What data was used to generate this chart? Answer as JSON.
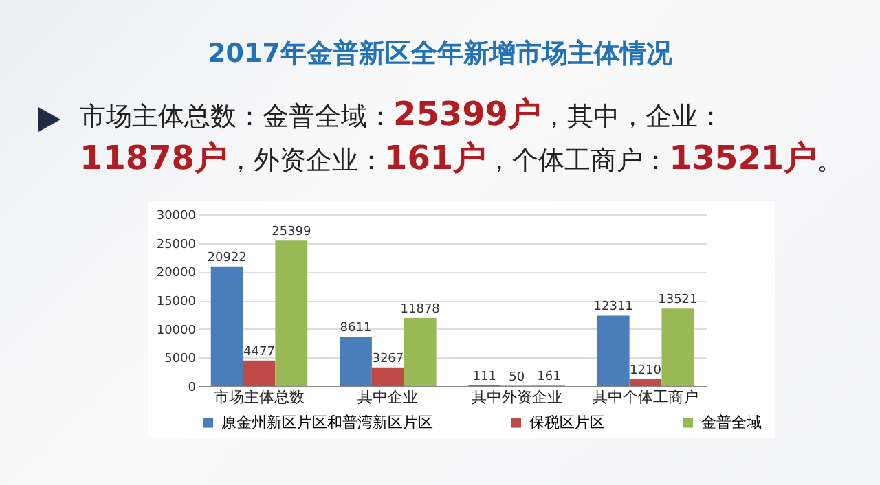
{
  "chart_data": {
    "type": "bar",
    "title": "2017年金普新区全年新增市场主体情况",
    "annotations": [
      "市场主体总数：金普全域：25399户，其中，企业：",
      "11878户，外资企业：161户，个体工商户：13521户。"
    ],
    "categories": [
      "市场主体总数",
      "其中企业",
      "其中外资企业",
      "其中个体工商户"
    ],
    "series": [
      {
        "name": "原金州新区片区和普湾新区片区",
        "color": "#4a7ebb",
        "values": [
          20922,
          8611,
          111,
          12311
        ]
      },
      {
        "name": "保税区片区",
        "color": "#be4b48",
        "values": [
          4477,
          3267,
          50,
          1210
        ]
      },
      {
        "name": "金普全域",
        "color": "#98b954",
        "values": [
          25399,
          11878,
          161,
          13521
        ]
      }
    ],
    "ylim": [
      0,
      30000
    ],
    "yticks": [
      0,
      5000,
      10000,
      15000,
      20000,
      25000,
      30000
    ],
    "grid": "y",
    "legend": "bottom",
    "data_labels": true
  }
}
